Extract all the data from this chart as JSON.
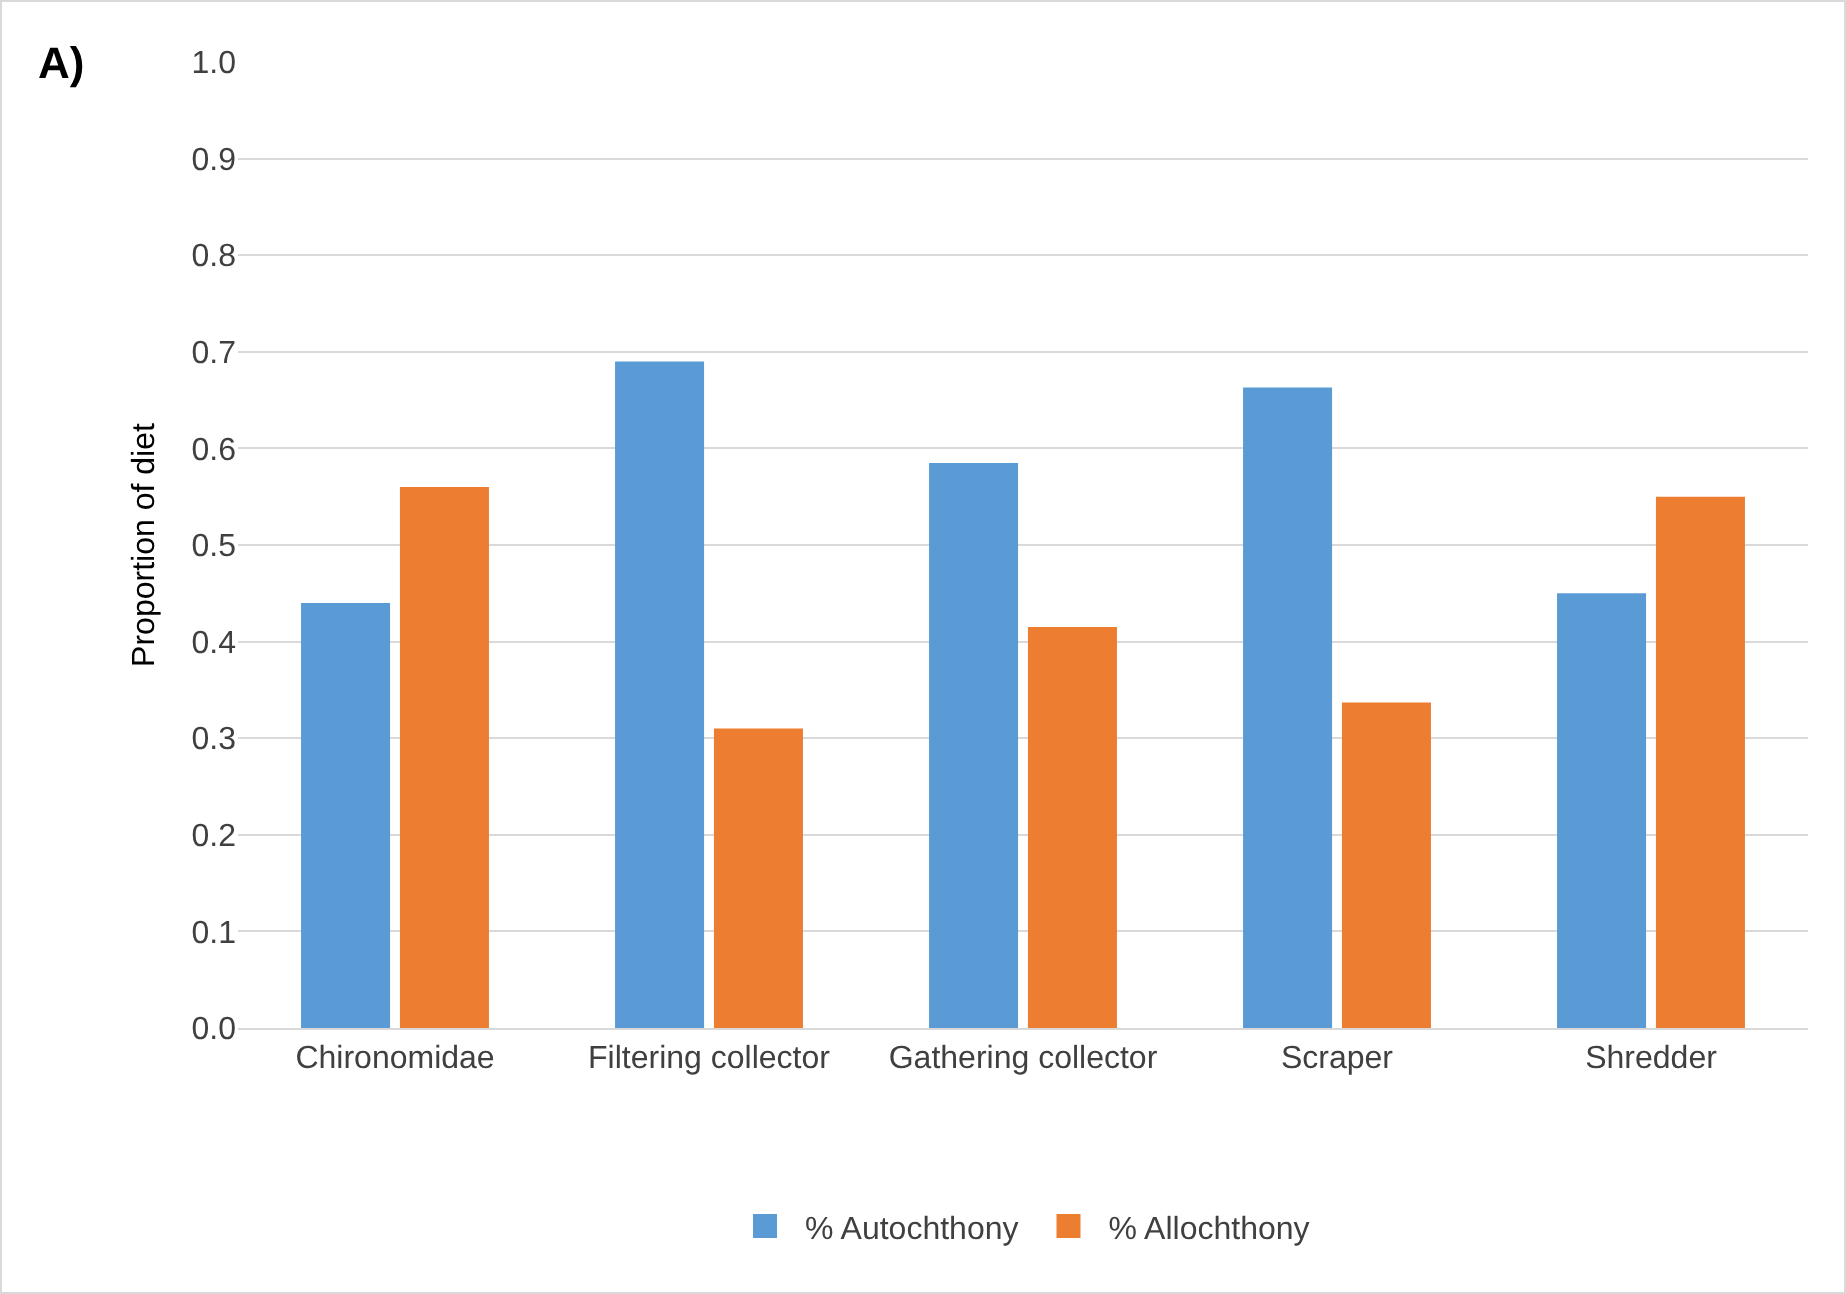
{
  "chart_data": {
    "type": "bar",
    "ylabel": "Proportion of diet",
    "annotations": [
      "A)"
    ],
    "categories": [
      "Chironomidae",
      "Filtering collector",
      "Gathering collector",
      "Scraper",
      "Shredder"
    ],
    "series": [
      {
        "name": "% Autochthony",
        "color": "#5b9bd5",
        "values": [
          0.44,
          0.69,
          0.585,
          0.663,
          0.45
        ]
      },
      {
        "name": "% Allochthony",
        "color": "#ed7d31",
        "values": [
          0.56,
          0.31,
          0.415,
          0.337,
          0.55
        ]
      }
    ],
    "ylim": [
      0,
      1
    ],
    "yticks": [
      {
        "value": 0,
        "label": "0.0"
      },
      {
        "value": 0.1,
        "label": "0.1"
      },
      {
        "value": 0.2,
        "label": "0.2"
      },
      {
        "value": 0.3,
        "label": "0.3"
      },
      {
        "value": 0.4,
        "label": "0.4"
      },
      {
        "value": 0.5,
        "label": "0.5"
      },
      {
        "value": 0.6,
        "label": "0.6"
      },
      {
        "value": 0.7,
        "label": "0.7"
      },
      {
        "value": 0.8,
        "label": "0.8"
      },
      {
        "value": 0.9,
        "label": "0.9"
      },
      {
        "value": 1,
        "label": "1.0"
      }
    ],
    "grid": "y",
    "legend": "bottom"
  }
}
